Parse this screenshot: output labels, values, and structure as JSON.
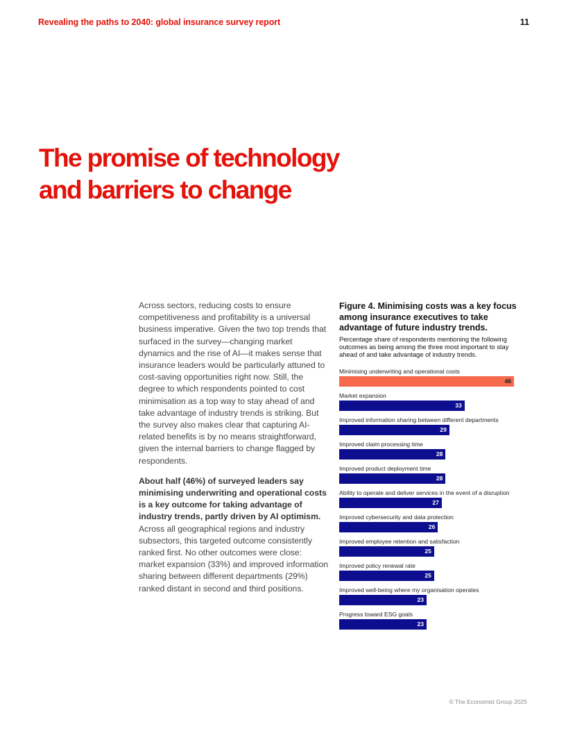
{
  "header": {
    "title": "Revealing the paths to 2040: global insurance survey report",
    "page_number": "11"
  },
  "section_title": "The promise of technology and barriers to change",
  "body": {
    "paragraph1": "Across sectors, reducing costs to ensure competitiveness and profitability is a universal business imperative. Given the two top trends that surfaced in the survey—changing market dynamics and the rise of AI—it makes sense that insurance leaders would be particularly attuned to cost-saving opportunities right now. Still, the degree to which respondents pointed to cost minimisation as a top way to stay ahead of and take advantage of industry trends is striking. But the survey also makes clear that capturing AI-related benefits is by no means straightforward, given the internal barriers to change flagged by respondents.",
    "paragraph2_bold": "About half (46%) of surveyed leaders say minimising underwriting and operational costs is a key outcome for taking advantage of industry trends, partly driven by AI optimism.",
    "paragraph2_rest": " Across all geographical regions and industry subsectors, this targeted outcome consistently ranked first. No other outcomes were close: market expansion (33%) and improved information sharing between different departments (29%) ranked distant in second and third positions."
  },
  "figure": {
    "title": "Figure 4. Minimising costs was a key focus among insurance executives to take advantage of future industry trends.",
    "subtitle": "Percentage share of respondents mentioning the following outcomes as being among the three most important to stay ahead of and take advantage of industry trends."
  },
  "chart_data": {
    "type": "bar",
    "orientation": "horizontal",
    "categories": [
      "Minimising underwriting and operational costs",
      "Market expansion",
      "Improved information sharing between different departments",
      "Improved claim processing time",
      "Improved product deployment time",
      "Ability to operate and deliver services in the event of a disruption",
      "Improved cybersecurity and data protection",
      "Improved employee retention and satisfaction",
      "Improved policy renewal rate",
      "Improved well-being where my organisation operates",
      "Progress toward ESG goals"
    ],
    "values": [
      46,
      33,
      29,
      28,
      28,
      27,
      26,
      25,
      25,
      23,
      23
    ],
    "value_labels": [
      "46",
      "33",
      "29",
      "28",
      "28",
      "27",
      "26",
      "25",
      "25",
      "23",
      "23"
    ],
    "xlim": [
      0,
      46
    ],
    "highlight_index": 0,
    "colors": {
      "highlight": "#f6694c",
      "default": "#0d0d8f"
    }
  },
  "footer": "© The Economist Group 2025"
}
